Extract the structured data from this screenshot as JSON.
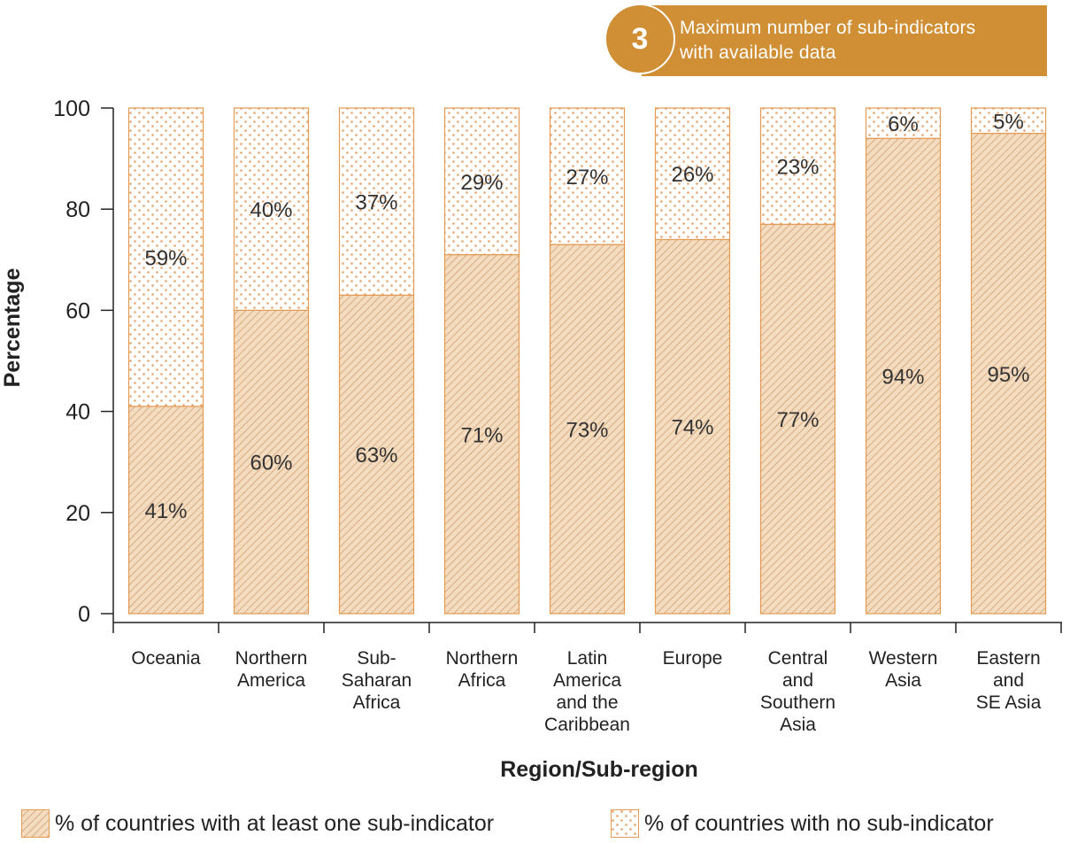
{
  "badge": {
    "number": "3",
    "text_line1": "Maximum number of sub-indicators",
    "text_line2": "with available data"
  },
  "colors": {
    "accent": "#d08f35",
    "hatch_fill": "#f4dcc0",
    "hatch_line": "#d2a070",
    "dot_color": "#e8a468",
    "bar_stroke": "#e39a52"
  },
  "legend": {
    "with": {
      "label": "% of countries with at least one sub-indicator"
    },
    "without": {
      "label": "% of countries with no sub-indicator"
    }
  },
  "chart_data": {
    "type": "bar",
    "stacked": true,
    "title": "",
    "xlabel": "Region/Sub-region",
    "ylabel": "Percentage",
    "ylim": [
      0,
      100
    ],
    "yticks": [
      0,
      20,
      40,
      60,
      80,
      100
    ],
    "categories": [
      [
        "Oceania"
      ],
      [
        "Northern",
        "America"
      ],
      [
        "Sub-",
        "Saharan",
        "Africa"
      ],
      [
        "Northern",
        "Africa"
      ],
      [
        "Latin",
        "America",
        "and the",
        "Caribbean"
      ],
      [
        "Europe"
      ],
      [
        "Central",
        "and",
        "Southern",
        "Asia"
      ],
      [
        "Western",
        "Asia"
      ],
      [
        "Eastern",
        "and",
        "SE Asia"
      ]
    ],
    "series": [
      {
        "name": "% of countries with at least one sub-indicator",
        "values": [
          41,
          60,
          63,
          71,
          73,
          74,
          77,
          94,
          95
        ],
        "labels": [
          "41%",
          "60%",
          "63%",
          "71%",
          "73%",
          "74%",
          "77%",
          "94%",
          "95%"
        ]
      },
      {
        "name": "% of countries with no sub-indicator",
        "values": [
          59,
          40,
          37,
          29,
          27,
          26,
          23,
          6,
          5
        ],
        "labels": [
          "59%",
          "40%",
          "37%",
          "29%",
          "27%",
          "26%",
          "23%",
          "6%",
          "5%"
        ]
      }
    ],
    "legend_position": "bottom",
    "grid": false
  }
}
